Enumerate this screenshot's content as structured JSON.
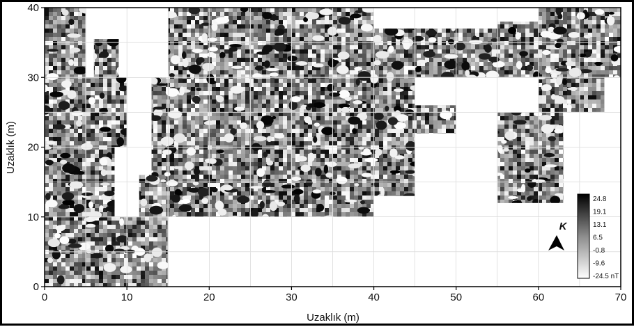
{
  "chart_data": {
    "type": "heatmap",
    "title": "",
    "xlabel": "Uzaklık (m)",
    "ylabel": "Uzaklık (m)",
    "xlim": [
      0,
      70
    ],
    "ylim": [
      0,
      40
    ],
    "x_ticks": [
      "0",
      "10",
      "20",
      "30",
      "40",
      "50",
      "60",
      "70"
    ],
    "y_ticks": [
      "0",
      "10",
      "20",
      "30",
      "40"
    ],
    "grid": true,
    "grid_step": 5,
    "colorbar": {
      "values": [
        "24.8",
        "19.1",
        "13.1",
        "6.5",
        "-0.8",
        "-9.6",
        "-24.5 nT"
      ],
      "min_color": "#ffffff",
      "max_color": "#000000"
    },
    "north_label": "K",
    "surveyed_blocks": [
      {
        "x": [
          0,
          5
        ],
        "y": [
          0,
          10
        ]
      },
      {
        "x": [
          5,
          10
        ],
        "y": [
          0,
          10
        ]
      },
      {
        "x": [
          10,
          15
        ],
        "y": [
          0,
          10
        ]
      },
      {
        "x": [
          0,
          5
        ],
        "y": [
          10,
          20
        ]
      },
      {
        "x": [
          5,
          8.5
        ],
        "y": [
          10,
          20
        ]
      },
      {
        "x": [
          11.5,
          15
        ],
        "y": [
          10,
          16
        ]
      },
      {
        "x": [
          0,
          5
        ],
        "y": [
          20,
          30
        ]
      },
      {
        "x": [
          5,
          10
        ],
        "y": [
          20,
          30
        ]
      },
      {
        "x": [
          0,
          5
        ],
        "y": [
          30,
          40
        ]
      },
      {
        "x": [
          6,
          9
        ],
        "y": [
          30,
          35.5
        ]
      },
      {
        "x": [
          13,
          15
        ],
        "y": [
          10,
          30
        ]
      },
      {
        "x": [
          15,
          20
        ],
        "y": [
          10,
          20
        ]
      },
      {
        "x": [
          20,
          25
        ],
        "y": [
          10,
          20
        ]
      },
      {
        "x": [
          25,
          30
        ],
        "y": [
          10,
          20
        ]
      },
      {
        "x": [
          30,
          35
        ],
        "y": [
          10,
          20
        ]
      },
      {
        "x": [
          35,
          40
        ],
        "y": [
          10,
          20
        ]
      },
      {
        "x": [
          40,
          45
        ],
        "y": [
          13,
          20
        ]
      },
      {
        "x": [
          15,
          20
        ],
        "y": [
          20,
          30
        ]
      },
      {
        "x": [
          20,
          25
        ],
        "y": [
          20,
          30
        ]
      },
      {
        "x": [
          25,
          30
        ],
        "y": [
          20,
          30
        ]
      },
      {
        "x": [
          30,
          35
        ],
        "y": [
          20,
          30
        ]
      },
      {
        "x": [
          35,
          40
        ],
        "y": [
          20,
          30
        ]
      },
      {
        "x": [
          40,
          45
        ],
        "y": [
          20,
          30
        ]
      },
      {
        "x": [
          45,
          50
        ],
        "y": [
          22,
          26
        ]
      },
      {
        "x": [
          15,
          20
        ],
        "y": [
          30,
          40
        ]
      },
      {
        "x": [
          20,
          25
        ],
        "y": [
          30,
          40
        ]
      },
      {
        "x": [
          25,
          30
        ],
        "y": [
          30,
          40
        ]
      },
      {
        "x": [
          30,
          35
        ],
        "y": [
          30,
          40
        ]
      },
      {
        "x": [
          35,
          40
        ],
        "y": [
          30,
          40
        ]
      },
      {
        "x": [
          40,
          45
        ],
        "y": [
          30,
          37
        ]
      },
      {
        "x": [
          45,
          50
        ],
        "y": [
          30,
          37
        ]
      },
      {
        "x": [
          50,
          55
        ],
        "y": [
          30,
          37
        ]
      },
      {
        "x": [
          55,
          60
        ],
        "y": [
          30,
          38
        ]
      },
      {
        "x": [
          60,
          65
        ],
        "y": [
          30,
          40
        ]
      },
      {
        "x": [
          65,
          70
        ],
        "y": [
          30,
          40
        ]
      },
      {
        "x": [
          55,
          60
        ],
        "y": [
          12,
          25
        ]
      },
      {
        "x": [
          60,
          63
        ],
        "y": [
          12,
          25
        ]
      },
      {
        "x": [
          60,
          65
        ],
        "y": [
          25,
          30
        ]
      },
      {
        "x": [
          65,
          68
        ],
        "y": [
          25,
          30
        ]
      }
    ]
  }
}
